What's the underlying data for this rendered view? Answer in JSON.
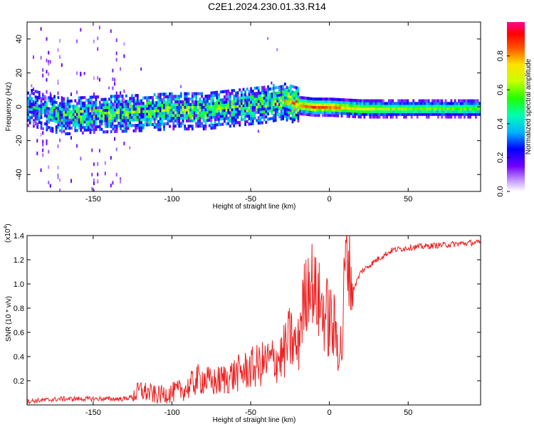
{
  "title": "C2E1.2024.230.01.33.R14",
  "chart_data": [
    {
      "type": "heatmap",
      "xlabel": "Height of straight line (km)",
      "ylabel": "Frequency (Hz)",
      "xlim": [
        -192,
        96
      ],
      "ylim": [
        -50,
        50
      ],
      "xticks": [
        -150,
        -100,
        -50,
        0,
        50
      ],
      "yticks": [
        -40,
        -20,
        0,
        20,
        40
      ],
      "colorbar": {
        "label": "Normalized spectral amplitude",
        "range": [
          0.0,
          1.0
        ],
        "ticks": [
          0.0,
          0.2,
          0.4,
          0.6,
          0.8
        ],
        "colormap": [
          "#ffffff",
          "#b070ff",
          "#6a00ff",
          "#0000ff",
          "#00c8ff",
          "#00ff80",
          "#40ff00",
          "#ffff00",
          "#ffa000",
          "#ff0000",
          "#ff0090"
        ]
      },
      "ridge": {
        "description_points_x": [
          -190,
          -170,
          -150,
          -120,
          -100,
          -80,
          -60,
          -40,
          -30,
          -20,
          -10,
          0,
          20,
          50,
          80,
          96
        ],
        "center_frequency": [
          0,
          -5,
          -4,
          -3,
          -2,
          -2,
          0,
          2,
          4,
          1,
          0,
          0,
          -1,
          -1,
          -1,
          -1
        ],
        "peak_amplitude": [
          0.3,
          0.45,
          0.5,
          0.5,
          0.5,
          0.5,
          0.5,
          0.5,
          0.55,
          0.8,
          0.9,
          0.85,
          0.7,
          0.6,
          0.6,
          0.6
        ]
      }
    },
    {
      "type": "line",
      "xlabel": "Height of straight line (km)",
      "ylabel": "SNR (10 * v/v)",
      "scale_label": "(x10",
      "scale_exponent": "4",
      "xlim": [
        -192,
        96
      ],
      "ylim": [
        0,
        1.4
      ],
      "xticks": [
        -150,
        -100,
        -50,
        0,
        50
      ],
      "yticks": [
        0.2,
        0.4,
        0.6,
        0.8,
        1.0,
        1.2,
        1.4
      ],
      "series": [
        {
          "color": "#ee2222",
          "x": [
            -192,
            -180,
            -170,
            -160,
            -150,
            -140,
            -130,
            -125,
            -120,
            -110,
            -100,
            -90,
            -85,
            -80,
            -75,
            -70,
            -60,
            -50,
            -40,
            -30,
            -25,
            -20,
            -18,
            -15,
            -12,
            -10,
            -5,
            0,
            5,
            8,
            10,
            12,
            15,
            20,
            25,
            30,
            40,
            50,
            60,
            70,
            80,
            90,
            96
          ],
          "y": [
            0.03,
            0.04,
            0.05,
            0.05,
            0.05,
            0.05,
            0.05,
            0.07,
            0.12,
            0.08,
            0.1,
            0.14,
            0.2,
            0.22,
            0.18,
            0.2,
            0.25,
            0.3,
            0.35,
            0.4,
            0.55,
            0.45,
            0.75,
            0.9,
            1.1,
            0.95,
            0.8,
            0.7,
            0.55,
            0.45,
            1.2,
            1.2,
            0.95,
            1.1,
            1.15,
            1.2,
            1.28,
            1.3,
            1.31,
            1.32,
            1.33,
            1.34,
            1.34
          ]
        }
      ]
    }
  ]
}
